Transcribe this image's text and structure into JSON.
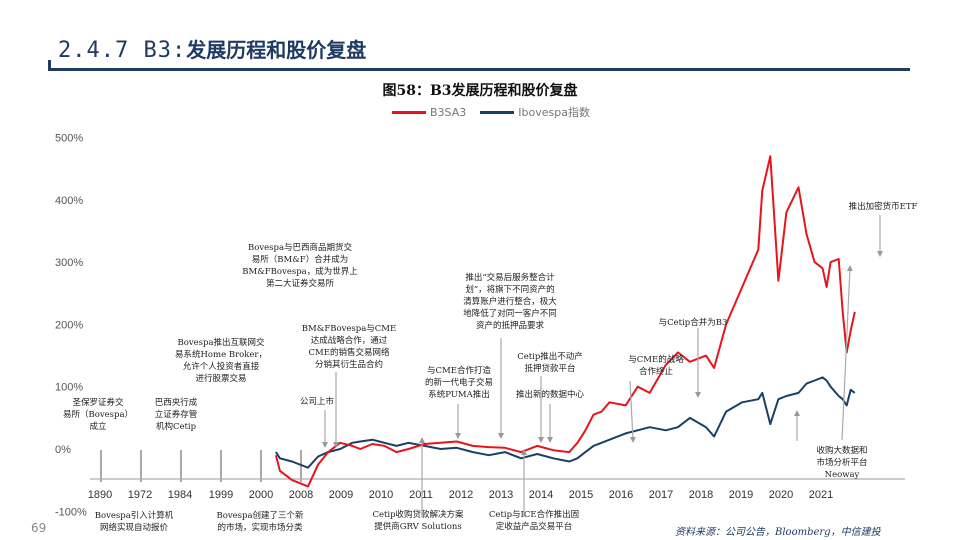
{
  "slide": {
    "section": "2.4.7 B3:",
    "title": "发展历程和股价复盘",
    "page_number": "69"
  },
  "figure_title": "图58：B3发展历程和股价复盘",
  "source": "资料来源：公司公告，Bloomberg，中信建投",
  "colors": {
    "b3": "#e8141b",
    "ibov": "#1a3f66",
    "title": "#1f3a63",
    "axis": "#999999",
    "annotation_line": "#aaaaaa"
  },
  "chart_data": {
    "type": "line",
    "title": "B3发展历程和股价复盘",
    "legend": [
      "B3SA3",
      "Ibovespa指数"
    ],
    "y_ticks": [
      -100,
      0,
      100,
      200,
      300,
      400,
      500
    ],
    "y_tick_labels": [
      "-100%",
      "0%",
      "100%",
      "200%",
      "300%",
      "400%",
      "500%"
    ],
    "ylim": [
      -100,
      500
    ],
    "x_tick_labels": [
      "1890",
      "1972",
      "1984",
      "1999",
      "2000",
      "2008",
      "2009",
      "2010",
      "2011",
      "2012",
      "2013",
      "2014",
      "2015",
      "2016",
      "2017",
      "2018",
      "2019",
      "2020",
      "2021"
    ],
    "series": [
      {
        "name": "B3SA3",
        "x": [
          2007.9,
          2008.0,
          2008.3,
          2008.7,
          2008.95,
          2009.2,
          2009.5,
          2009.8,
          2010.0,
          2010.3,
          2010.6,
          2010.9,
          2011.2,
          2011.6,
          2012.0,
          2012.4,
          2012.8,
          2013.2,
          2013.6,
          2014.0,
          2014.4,
          2014.8,
          2015.2,
          2015.4,
          2015.6,
          2015.8,
          2016.0,
          2016.2,
          2016.6,
          2016.9,
          2017.2,
          2017.6,
          2017.9,
          2018.2,
          2018.6,
          2018.8,
          2019.1,
          2019.5,
          2019.9,
          2020.0,
          2020.2,
          2020.4,
          2020.6,
          2020.9,
          2021.1,
          2021.3,
          2021.5,
          2021.6,
          2021.7,
          2021.9,
          2022.0,
          2022.1,
          2022.2,
          2022.3
        ],
        "values": [
          -10,
          -35,
          -50,
          -60,
          -25,
          -5,
          10,
          5,
          0,
          8,
          5,
          -5,
          0,
          8,
          10,
          12,
          5,
          3,
          2,
          -5,
          5,
          -2,
          -5,
          10,
          30,
          55,
          60,
          75,
          70,
          100,
          90,
          135,
          155,
          140,
          150,
          130,
          200,
          260,
          320,
          415,
          470,
          270,
          380,
          420,
          345,
          300,
          290,
          260,
          300,
          305,
          220,
          155,
          190,
          220
        ]
      },
      {
        "name": "Ibovespa指数",
        "x": [
          2007.9,
          2008.0,
          2008.3,
          2008.7,
          2008.95,
          2009.2,
          2009.5,
          2009.8,
          2010.0,
          2010.3,
          2010.6,
          2010.9,
          2011.2,
          2011.6,
          2012.0,
          2012.4,
          2012.8,
          2013.2,
          2013.6,
          2014.0,
          2014.4,
          2014.8,
          2015.2,
          2015.4,
          2015.6,
          2015.8,
          2016.0,
          2016.2,
          2016.6,
          2016.9,
          2017.2,
          2017.6,
          2017.9,
          2018.2,
          2018.6,
          2018.8,
          2019.1,
          2019.5,
          2019.9,
          2020.0,
          2020.2,
          2020.4,
          2020.6,
          2020.9,
          2021.1,
          2021.3,
          2021.5,
          2021.6,
          2021.7,
          2021.9,
          2022.0,
          2022.1,
          2022.2,
          2022.3
        ],
        "values": [
          -5,
          -15,
          -20,
          -30,
          -12,
          -5,
          0,
          10,
          12,
          15,
          10,
          5,
          10,
          5,
          0,
          2,
          -5,
          -10,
          -5,
          -15,
          -8,
          -15,
          -20,
          -15,
          -5,
          5,
          10,
          15,
          25,
          30,
          35,
          30,
          35,
          50,
          35,
          20,
          60,
          75,
          80,
          90,
          40,
          80,
          85,
          90,
          105,
          110,
          115,
          110,
          100,
          85,
          80,
          70,
          95,
          90
        ]
      }
    ],
    "annotations": [
      {
        "lines": [
          "圣保罗证券交",
          "易所（Bovespa）",
          "成立"
        ]
      },
      {
        "lines": [
          "Bovespa引入计算机",
          "网络实现自动报价"
        ]
      },
      {
        "lines": [
          "巴西央行成",
          "立证券存管",
          "机构Cetip"
        ]
      },
      {
        "lines": [
          "Bovespa推出互联网交",
          "易系统Home Broker，",
          "允许个人投资者直接",
          "进行股票交易"
        ]
      },
      {
        "lines": [
          "Bovespa创建了三个新",
          "的市场，实现市场分类"
        ]
      },
      {
        "lines": [
          "Bovespa与巴西商品期货交",
          "易所（BM&F）合并成为",
          "BM&FBovespa，成为世界上",
          "第二大证券交易所"
        ]
      },
      {
        "lines": [
          "公司上市"
        ]
      },
      {
        "lines": [
          "BM&FBovespa与CME",
          "达成战略合作，通过",
          "CME的销售交易网络",
          "分销其衍生品合约"
        ]
      },
      {
        "lines": [
          "Cetip收购贷款解决方案",
          "提供商GRV Solutions"
        ]
      },
      {
        "lines": [
          "与CME合作打造",
          "的新一代电子交易",
          "系统PUMA推出"
        ]
      },
      {
        "lines": [
          "推出“交易后服务整合计",
          "划”，将旗下不同资产的",
          "清算账户进行整合，极大",
          "地降低了对同一客户不同",
          "资产的抵押品要求"
        ]
      },
      {
        "lines": [
          "Cetip与ICE合作推出固",
          "定收益产品交易平台"
        ]
      },
      {
        "lines": [
          "Cetip推出不动产",
          "抵押贷款平台"
        ]
      },
      {
        "lines": [
          "推出新的数据中心"
        ]
      },
      {
        "lines": [
          "与CME的战略",
          "合作终止"
        ]
      },
      {
        "lines": [
          "与Cetip合并为B3"
        ]
      },
      {
        "lines": [
          "收购大数据和",
          "市场分析平台",
          "Neoway"
        ]
      },
      {
        "lines": [
          "推出加密货币ETF"
        ]
      }
    ]
  }
}
